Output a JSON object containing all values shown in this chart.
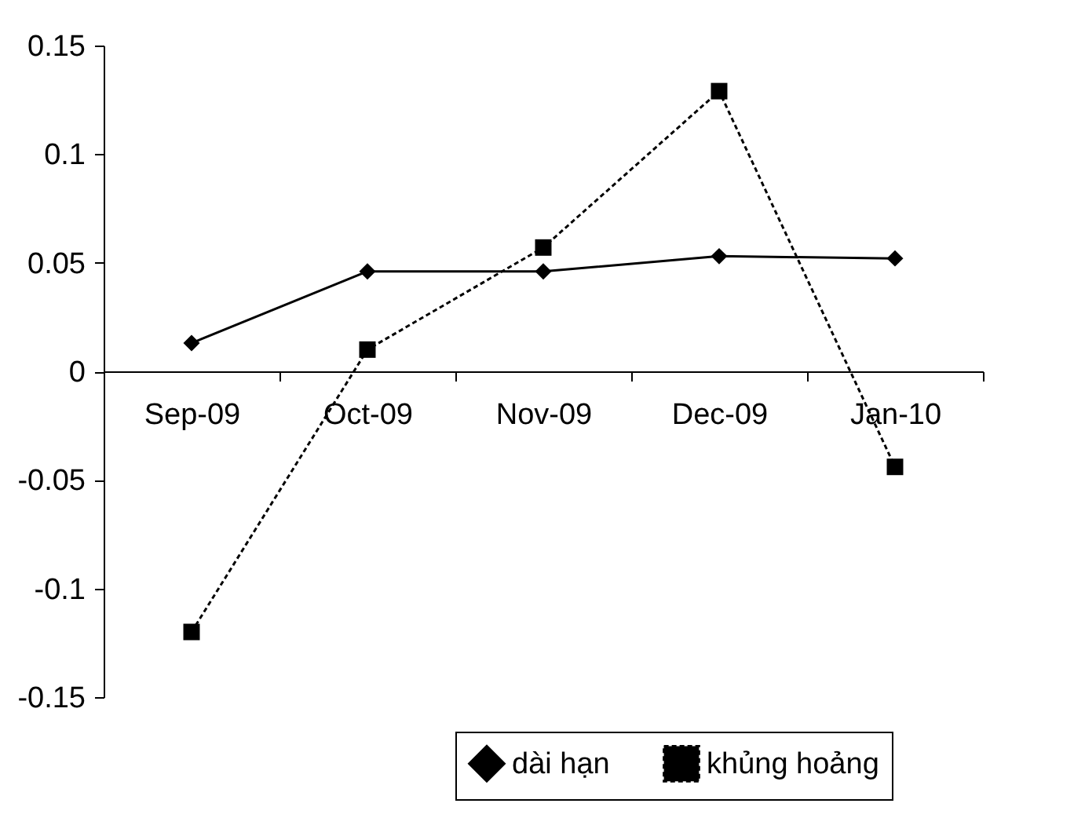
{
  "chart_data": {
    "type": "line",
    "categories": [
      "Sep-09",
      "Oct-09",
      "Nov-09",
      "Dec-09",
      "Jan-10"
    ],
    "series": [
      {
        "name": "dài hạn",
        "color": "#000000",
        "values": [
          0.013,
          0.046,
          0.046,
          0.053,
          0.052
        ],
        "marker": "diamond",
        "line_style": "solid"
      },
      {
        "name": "khủng hoảng",
        "color": "#000000",
        "values": [
          -0.12,
          0.01,
          0.057,
          0.129,
          -0.044
        ],
        "marker": "square",
        "line_style": "dashed"
      }
    ],
    "ylim": [
      -0.15,
      0.15
    ],
    "yticks": [
      -0.15,
      -0.1,
      -0.05,
      0,
      0.05,
      0.1,
      0.15
    ],
    "grid": false,
    "legend": "bottom right"
  }
}
